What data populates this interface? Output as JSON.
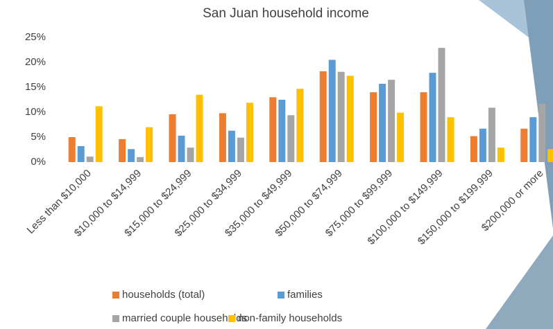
{
  "chart_data": {
    "type": "bar",
    "title": "San Juan household income",
    "categories": [
      "Less than $10,000",
      "$10,000 to $14,999",
      "$15,000 to $24,999",
      "$25,000 to $34,999",
      "$35,000 to $49,999",
      "$50,000 to $74,999",
      "$75,000 to $99,999",
      "$100,000 to $149,999",
      "$150,000 to $199,999",
      "$200,000 or more"
    ],
    "series": [
      {
        "name": "households (total)",
        "color": "#ed7d31",
        "values": [
          5.0,
          4.6,
          9.6,
          9.8,
          13.0,
          18.2,
          14.0,
          14.0,
          5.2,
          6.7
        ]
      },
      {
        "name": "families",
        "color": "#5b9bd5",
        "values": [
          3.2,
          2.6,
          5.3,
          6.3,
          12.5,
          20.5,
          15.7,
          17.9,
          6.7,
          9.0
        ]
      },
      {
        "name": "married couple households",
        "color": "#a5a5a5",
        "values": [
          1.1,
          1.0,
          2.9,
          4.9,
          9.4,
          18.1,
          16.5,
          22.9,
          10.9,
          11.7
        ]
      },
      {
        "name": "non-family households",
        "color": "#ffc000",
        "values": [
          11.2,
          7.0,
          13.5,
          11.9,
          14.7,
          17.3,
          9.9,
          9.0,
          2.9,
          2.6
        ]
      }
    ],
    "ylim": [
      0,
      25
    ],
    "yticks": [
      {
        "value": 0,
        "label": "0%"
      },
      {
        "value": 5,
        "label": "5%"
      },
      {
        "value": 10,
        "label": "10%"
      },
      {
        "value": 15,
        "label": "15%"
      },
      {
        "value": 20,
        "label": "20%"
      },
      {
        "value": 25,
        "label": "25%"
      }
    ],
    "grid": false
  }
}
